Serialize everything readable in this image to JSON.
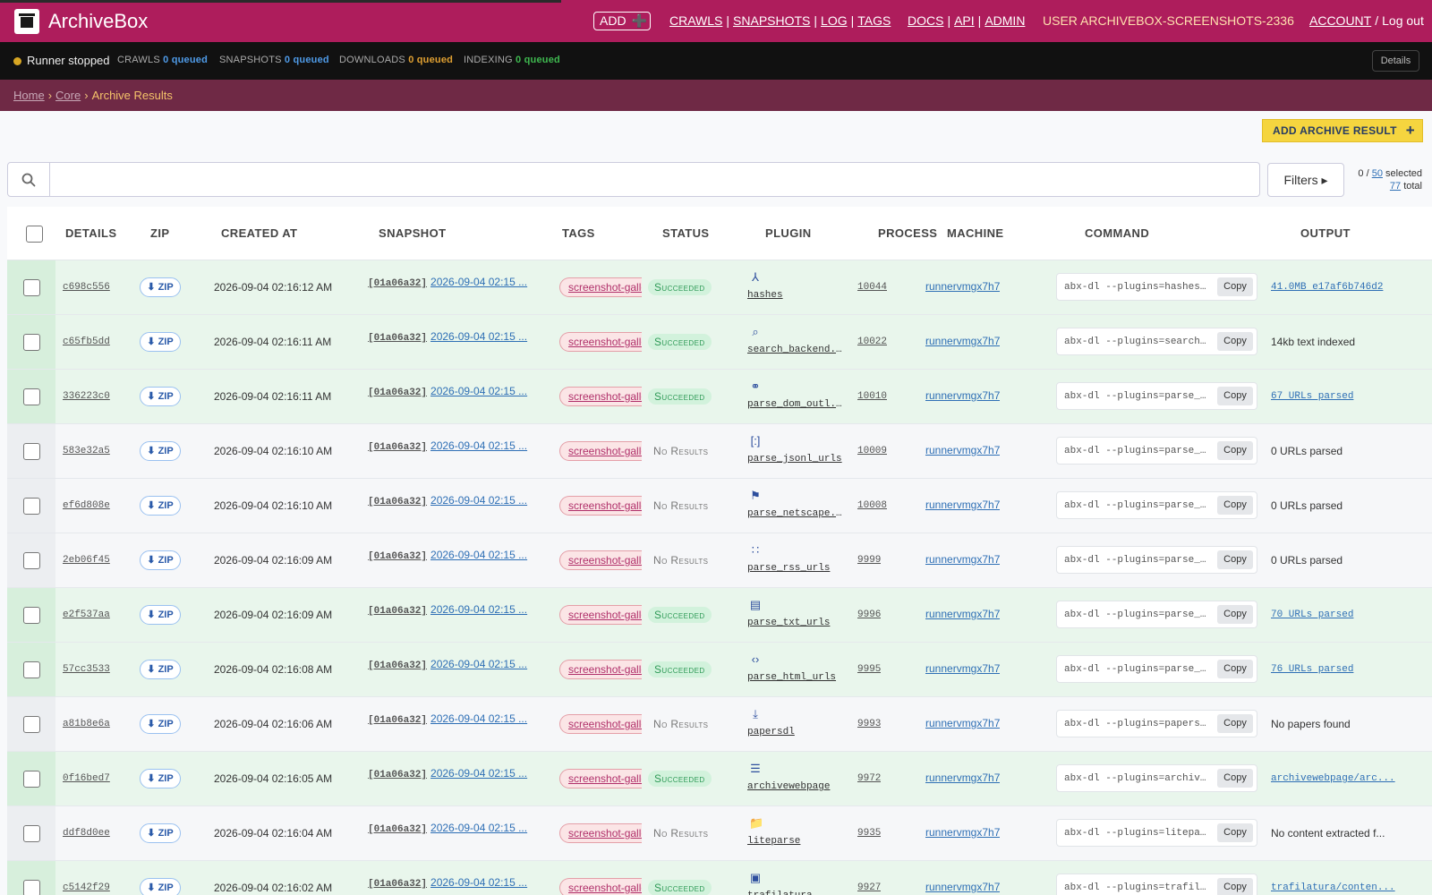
{
  "header": {
    "brand": "ArchiveBox",
    "add_label": "ADD",
    "nav_crawls": "CRAWLS",
    "nav_snapshots": "SNAPSHOTS",
    "nav_log": "LOG",
    "nav_tags": "TAGS",
    "nav_docs": "DOCS",
    "nav_api": "API",
    "nav_admin": "ADMIN",
    "user": "USER ARCHIVEBOX-SCREENSHOTS-2336",
    "account": "ACCOUNT",
    "logout": "Log out"
  },
  "statusbar": {
    "runner": "Runner stopped",
    "crawls_label": "CRAWLS",
    "crawls_value": "0 queued",
    "snapshots_label": "SNAPSHOTS",
    "snapshots_value": "0 queued",
    "downloads_label": "DOWNLOADS",
    "downloads_value": "0 queued",
    "indexing_label": "INDEXING",
    "indexing_value": "0 queued",
    "details": "Details"
  },
  "breadcrumb": {
    "home": "Home",
    "core": "Core",
    "current": "Archive Results"
  },
  "toolbar": {
    "add_result": "ADD ARCHIVE RESULT",
    "search_value": "",
    "filters": "Filters ▸",
    "selected_prefix": "0 / ",
    "selected_page": "50",
    "selected_suffix": " selected",
    "total": "77",
    "total_suffix": " total"
  },
  "columns": {
    "details": "DETAILS",
    "zip": "ZIP",
    "created": "CREATED AT",
    "snapshot": "SNAPSHOT",
    "tags": "TAGS",
    "status": "STATUS",
    "plugin": "PLUGIN",
    "process": "PROCESS",
    "machine": "MACHINE",
    "command": "COMMAND",
    "output": "OUTPUT"
  },
  "common": {
    "zip_label": "⬇ ZIP",
    "snapshot_id": "[01a06a32]",
    "snapshot_time": "2026-09-04 02:15 ...",
    "tag": "screenshot-gallery",
    "machine": "runnervmgx7h7",
    "copy": "Copy"
  },
  "rows": [
    {
      "id": "c698c556",
      "created": "2026-09-04 02:16:12 AM",
      "status": "Succeeded",
      "plugin": "hashes",
      "icon": "⅄",
      "process": "10044",
      "command": "abx-dl --plugins=hashes...",
      "output": "41.0MB e17af6b746d2"
    },
    {
      "id": "c65fb5dd",
      "created": "2026-09-04 02:16:11 AM",
      "status": "Succeeded",
      "plugin": "search_backend...",
      "icon": "⌕",
      "process": "10022",
      "command": "abx-dl --plugins=search...",
      "output": "14kb text indexed"
    },
    {
      "id": "336223c0",
      "created": "2026-09-04 02:16:11 AM",
      "status": "Succeeded",
      "plugin": "parse_dom_outl...",
      "icon": "⚭",
      "process": "10010",
      "command": "abx-dl --plugins=parse_...",
      "output": "67 URLs parsed"
    },
    {
      "id": "583e32a5",
      "created": "2026-09-04 02:16:10 AM",
      "status": "No Results",
      "plugin": "parse_jsonl_urls",
      "icon": "[:]",
      "process": "10009",
      "command": "abx-dl --plugins=parse_...",
      "output": "0 URLs parsed"
    },
    {
      "id": "ef6d808e",
      "created": "2026-09-04 02:16:10 AM",
      "status": "No Results",
      "plugin": "parse_netscape...",
      "icon": "⚑",
      "process": "10008",
      "command": "abx-dl --plugins=parse_...",
      "output": "0 URLs parsed"
    },
    {
      "id": "2eb06f45",
      "created": "2026-09-04 02:16:09 AM",
      "status": "No Results",
      "plugin": "parse_rss_urls",
      "icon": "∷",
      "process": "9999",
      "command": "abx-dl --plugins=parse_...",
      "output": "0 URLs parsed"
    },
    {
      "id": "e2f537aa",
      "created": "2026-09-04 02:16:09 AM",
      "status": "Succeeded",
      "plugin": "parse_txt_urls",
      "icon": "▤",
      "process": "9996",
      "command": "abx-dl --plugins=parse_...",
      "output": "70 URLs parsed"
    },
    {
      "id": "57cc3533",
      "created": "2026-09-04 02:16:08 AM",
      "status": "Succeeded",
      "plugin": "parse_html_urls",
      "icon": "‹›",
      "process": "9995",
      "command": "abx-dl --plugins=parse_...",
      "output": "76 URLs parsed"
    },
    {
      "id": "a81b8e6a",
      "created": "2026-09-04 02:16:06 AM",
      "status": "No Results",
      "plugin": "papersdl",
      "icon": "⤓",
      "process": "9993",
      "command": "abx-dl --plugins=papers...",
      "output": "No papers found"
    },
    {
      "id": "0f16bed7",
      "created": "2026-09-04 02:16:05 AM",
      "status": "Succeeded",
      "plugin": "archivewebpage",
      "icon": "☰",
      "process": "9972",
      "command": "abx-dl --plugins=archiv...",
      "output": "archivewebpage/arc..."
    },
    {
      "id": "ddf8d0ee",
      "created": "2026-09-04 02:16:04 AM",
      "status": "No Results",
      "plugin": "liteparse",
      "icon": "📁",
      "process": "9935",
      "command": "abx-dl --plugins=litepa...",
      "output": "No content extracted f..."
    },
    {
      "id": "c5142f29",
      "created": "2026-09-04 02:16:02 AM",
      "status": "Succeeded",
      "plugin": "trafilatura",
      "icon": "▣",
      "process": "9927",
      "command": "abx-dl --plugins=trafil...",
      "output": "trafilatura/conten..."
    }
  ]
}
